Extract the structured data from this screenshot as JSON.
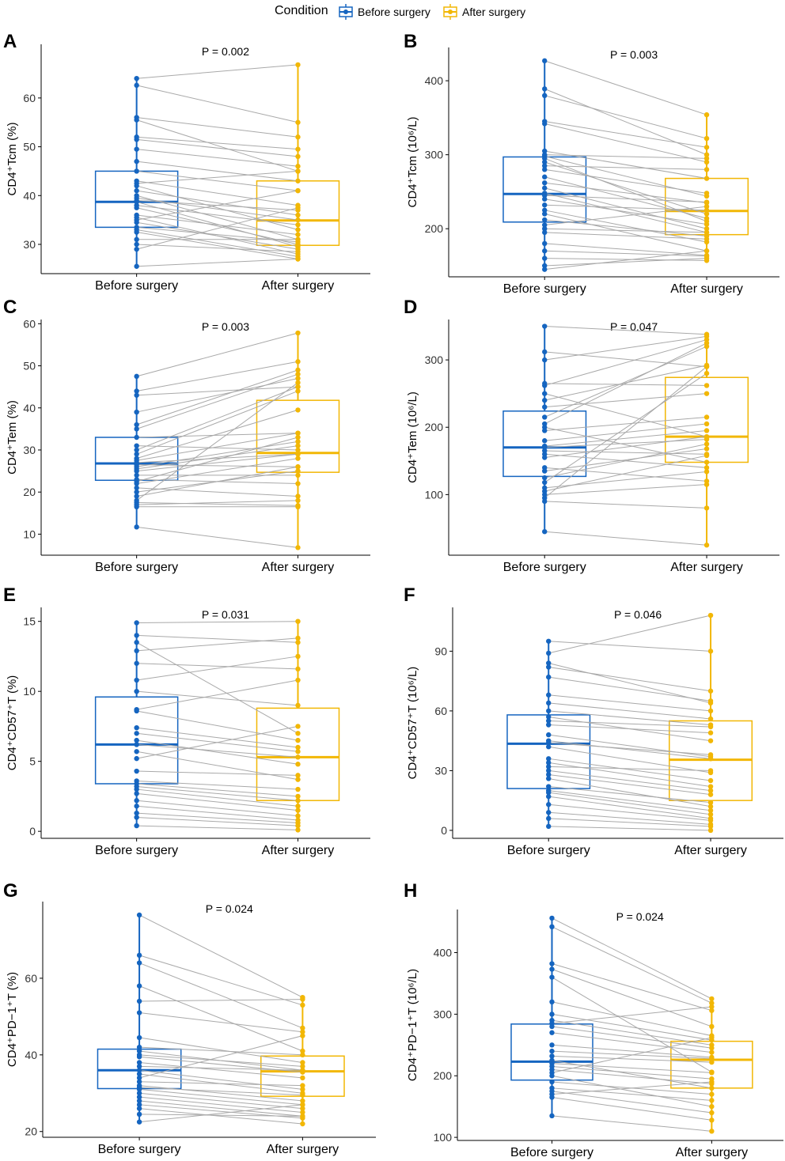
{
  "legend": {
    "title": "Condition",
    "items": [
      {
        "label": "Before surgery",
        "color": "#1565c0"
      },
      {
        "label": "After surgery",
        "color": "#f2b705"
      }
    ]
  },
  "colors": {
    "before": "#1565c0",
    "after": "#f2b705",
    "pair_line": "#a9a9a9",
    "axis": "#000000"
  },
  "chart_data": [
    {
      "type": "boxplot_paired",
      "panel_label": "A",
      "ylabel": "CD4⁺Tcm (%)",
      "p_text": "P = 0.002",
      "categories": [
        "Before surgery",
        "After surgery"
      ],
      "ylim": [
        24,
        71
      ],
      "yticks": [
        30,
        40,
        50,
        60
      ],
      "box": {
        "before": {
          "q1": 33.5,
          "median": 38.7,
          "q3": 45
        },
        "after": {
          "q1": 29.8,
          "median": 34.9,
          "q3": 43
        }
      },
      "pairs": [
        [
          64,
          66.8
        ],
        [
          62.6,
          55
        ],
        [
          56,
          52
        ],
        [
          55.5,
          45
        ],
        [
          52,
          49.5
        ],
        [
          51.5,
          48
        ],
        [
          49.5,
          46
        ],
        [
          47,
          43
        ],
        [
          45,
          41
        ],
        [
          43,
          38
        ],
        [
          42.5,
          45
        ],
        [
          42,
          33
        ],
        [
          41,
          36
        ],
        [
          40,
          31
        ],
        [
          39.5,
          35
        ],
        [
          39,
          37
        ],
        [
          38.7,
          29.5
        ],
        [
          38,
          34
        ],
        [
          37.5,
          30
        ],
        [
          36,
          32
        ],
        [
          35.5,
          28
        ],
        [
          35,
          41
        ],
        [
          34.5,
          29
        ],
        [
          33.5,
          30.5
        ],
        [
          33,
          27.5
        ],
        [
          32.5,
          27
        ],
        [
          31,
          31
        ],
        [
          30,
          28.5
        ],
        [
          29,
          37.5
        ],
        [
          25.5,
          27
        ]
      ]
    },
    {
      "type": "boxplot_paired",
      "panel_label": "B",
      "ylabel": "CD4⁺Tcm (10⁶/L)",
      "p_text": "P = 0.003",
      "categories": [
        "Before surgery",
        "After surgery"
      ],
      "ylim": [
        135,
        445
      ],
      "yticks": [
        200,
        300,
        400
      ],
      "box": {
        "before": {
          "q1": 209,
          "median": 247,
          "q3": 297
        },
        "after": {
          "q1": 192,
          "median": 224,
          "q3": 268
        }
      },
      "pairs": [
        [
          427,
          354
        ],
        [
          389,
          300
        ],
        [
          380,
          322
        ],
        [
          345,
          310
        ],
        [
          342,
          290
        ],
        [
          305,
          268
        ],
        [
          300,
          295
        ],
        [
          298,
          244
        ],
        [
          295,
          210
        ],
        [
          290,
          220
        ],
        [
          285,
          280
        ],
        [
          280,
          248
        ],
        [
          270,
          214
        ],
        [
          262,
          235
        ],
        [
          255,
          200
        ],
        [
          248,
          195
        ],
        [
          245,
          236
        ],
        [
          240,
          206
        ],
        [
          232,
          225
        ],
        [
          225,
          182
        ],
        [
          220,
          170
        ],
        [
          212,
          190
        ],
        [
          205,
          230
        ],
        [
          200,
          195
        ],
        [
          195,
          186
        ],
        [
          180,
          164
        ],
        [
          170,
          163
        ],
        [
          160,
          157
        ],
        [
          150,
          160
        ],
        [
          145,
          170
        ]
      ]
    },
    {
      "type": "boxplot_paired",
      "panel_label": "C",
      "ylabel": "CD4⁺Tem (%)",
      "p_text": "P = 0.003",
      "categories": [
        "Before surgery",
        "After surgery"
      ],
      "ylim": [
        5,
        61
      ],
      "yticks": [
        10,
        20,
        30,
        40,
        50,
        60
      ],
      "box": {
        "before": {
          "q1": 22.8,
          "median": 26.8,
          "q3": 33
        },
        "after": {
          "q1": 24.7,
          "median": 29.3,
          "q3": 41.8
        }
      },
      "pairs": [
        [
          47.5,
          57.8
        ],
        [
          44,
          51
        ],
        [
          43,
          45
        ],
        [
          39,
          47
        ],
        [
          36,
          49
        ],
        [
          35,
          48
        ],
        [
          33,
          34
        ],
        [
          31,
          30
        ],
        [
          30,
          45
        ],
        [
          29,
          44
        ],
        [
          28,
          39.5
        ],
        [
          27.5,
          34
        ],
        [
          27,
          29
        ],
        [
          26.5,
          26
        ],
        [
          26,
          32
        ],
        [
          25.5,
          31
        ],
        [
          25,
          29
        ],
        [
          24,
          24
        ],
        [
          23,
          22
        ],
        [
          22.5,
          33
        ],
        [
          22,
          28
        ],
        [
          21,
          19
        ],
        [
          20,
          25
        ],
        [
          19,
          26
        ],
        [
          18,
          46
        ],
        [
          17.5,
          16.8
        ],
        [
          17,
          18
        ],
        [
          16.5,
          16.5
        ],
        [
          11.7,
          6.8
        ]
      ]
    },
    {
      "type": "boxplot_paired",
      "panel_label": "D",
      "ylabel": "CD4⁺Tem (10⁶/L)",
      "p_text": "P = 0.047",
      "categories": [
        "Before surgery",
        "After surgery"
      ],
      "ylim": [
        10,
        360
      ],
      "yticks": [
        100,
        200,
        300
      ],
      "box": {
        "before": {
          "q1": 127,
          "median": 170,
          "q3": 224
        },
        "after": {
          "q1": 148,
          "median": 186,
          "q3": 274
        }
      },
      "pairs": [
        [
          350,
          338
        ],
        [
          312,
          290
        ],
        [
          300,
          335
        ],
        [
          265,
          262
        ],
        [
          262,
          330
        ],
        [
          250,
          186
        ],
        [
          240,
          292
        ],
        [
          230,
          250
        ],
        [
          215,
          320
        ],
        [
          205,
          325
        ],
        [
          200,
          148
        ],
        [
          195,
          215
        ],
        [
          180,
          205
        ],
        [
          172,
          195
        ],
        [
          170,
          182
        ],
        [
          165,
          160
        ],
        [
          160,
          140
        ],
        [
          155,
          186
        ],
        [
          140,
          120
        ],
        [
          135,
          168
        ],
        [
          125,
          175
        ],
        [
          118,
          280
        ],
        [
          110,
          134
        ],
        [
          105,
          158
        ],
        [
          100,
          115
        ],
        [
          95,
          290
        ],
        [
          90,
          80
        ],
        [
          45,
          25
        ]
      ]
    },
    {
      "type": "boxplot_paired",
      "panel_label": "E",
      "ylabel": "CD4⁺CD57⁺T (%)",
      "p_text": "P = 0.031",
      "categories": [
        "Before surgery",
        "After surgery"
      ],
      "ylim": [
        -0.5,
        16
      ],
      "yticks": [
        0,
        5,
        10,
        15
      ],
      "box": {
        "before": {
          "q1": 3.4,
          "median": 6.2,
          "q3": 9.6
        },
        "after": {
          "q1": 2.2,
          "median": 5.3,
          "q3": 8.8
        }
      },
      "pairs": [
        [
          14.9,
          15
        ],
        [
          14,
          13.5
        ],
        [
          13.5,
          7
        ],
        [
          12.9,
          13.8
        ],
        [
          12,
          11.6
        ],
        [
          10.8,
          12.5
        ],
        [
          10,
          9
        ],
        [
          8.7,
          10.8
        ],
        [
          8.6,
          6.5
        ],
        [
          7.4,
          6
        ],
        [
          7,
          5.7
        ],
        [
          6.5,
          4.8
        ],
        [
          6.2,
          5.3
        ],
        [
          5.7,
          3.7
        ],
        [
          5.2,
          7.5
        ],
        [
          4.3,
          4
        ],
        [
          3.6,
          3
        ],
        [
          3.4,
          2.5
        ],
        [
          3.2,
          2.2
        ],
        [
          3,
          1.8
        ],
        [
          2.7,
          1.5
        ],
        [
          2.2,
          1.1
        ],
        [
          1.8,
          0.8
        ],
        [
          1.3,
          0.6
        ],
        [
          1,
          0.4
        ],
        [
          0.4,
          0.1
        ]
      ]
    },
    {
      "type": "boxplot_paired",
      "panel_label": "F",
      "ylabel": "CD4⁺CD57⁺T (10⁶/L)",
      "p_text": "P = 0.046",
      "categories": [
        "Before surgery",
        "After surgery"
      ],
      "ylim": [
        -4,
        112
      ],
      "yticks": [
        0,
        30,
        60,
        90
      ],
      "box": {
        "before": {
          "q1": 21,
          "median": 43.5,
          "q3": 58
        },
        "after": {
          "q1": 15,
          "median": 35.5,
          "q3": 55
        }
      },
      "pairs": [
        [
          95,
          90
        ],
        [
          89,
          108
        ],
        [
          84,
          64
        ],
        [
          82,
          70
        ],
        [
          77,
          65
        ],
        [
          68,
          60
        ],
        [
          64,
          56
        ],
        [
          60,
          53
        ],
        [
          57,
          45
        ],
        [
          55,
          52
        ],
        [
          53,
          49
        ],
        [
          48,
          37
        ],
        [
          45,
          36
        ],
        [
          44,
          38
        ],
        [
          42,
          29
        ],
        [
          36,
          25
        ],
        [
          34,
          22
        ],
        [
          32,
          30
        ],
        [
          30,
          20
        ],
        [
          28,
          18
        ],
        [
          26,
          12
        ],
        [
          22,
          14
        ],
        [
          20,
          10
        ],
        [
          19,
          8
        ],
        [
          17,
          6
        ],
        [
          13,
          5
        ],
        [
          9,
          3
        ],
        [
          6,
          2
        ],
        [
          2,
          0
        ]
      ]
    },
    {
      "type": "boxplot_paired",
      "panel_label": "G",
      "ylabel": "CD4⁺PD−1⁺T (%)",
      "p_text": "P = 0.024",
      "categories": [
        "Before surgery",
        "After surgery"
      ],
      "ylim": [
        18.5,
        80
      ],
      "yticks": [
        20,
        40,
        60
      ],
      "box": {
        "before": {
          "q1": 31.2,
          "median": 36,
          "q3": 41.5
        },
        "after": {
          "q1": 29.2,
          "median": 35.7,
          "q3": 39.7
        }
      },
      "pairs": [
        [
          76.5,
          55
        ],
        [
          66,
          53
        ],
        [
          64,
          47
        ],
        [
          58,
          41
        ],
        [
          54,
          54.5
        ],
        [
          51,
          46
        ],
        [
          44.5,
          38
        ],
        [
          42,
          40
        ],
        [
          41,
          36
        ],
        [
          40,
          37
        ],
        [
          39.5,
          35.5
        ],
        [
          38,
          34
        ],
        [
          37,
          36
        ],
        [
          36,
          31
        ],
        [
          35,
          30
        ],
        [
          34,
          45
        ],
        [
          33,
          32
        ],
        [
          32,
          28
        ],
        [
          31.5,
          29.5
        ],
        [
          31,
          27
        ],
        [
          30,
          26
        ],
        [
          29,
          25
        ],
        [
          28,
          24
        ],
        [
          27,
          23.5
        ],
        [
          26,
          22
        ],
        [
          24.5,
          24
        ],
        [
          22.5,
          27
        ]
      ]
    },
    {
      "type": "boxplot_paired",
      "panel_label": "H",
      "ylabel": "CD4⁺PD−1⁺T (10⁶/L)",
      "p_text": "P = 0.024",
      "categories": [
        "Before surgery",
        "After surgery"
      ],
      "ylim": [
        95,
        470
      ],
      "yticks": [
        100,
        200,
        300,
        400
      ],
      "box": {
        "before": {
          "q1": 193,
          "median": 223,
          "q3": 284
        },
        "after": {
          "q1": 180,
          "median": 226,
          "q3": 256
        }
      },
      "pairs": [
        [
          456,
          325
        ],
        [
          442,
          318
        ],
        [
          382,
          306
        ],
        [
          373,
          280
        ],
        [
          360,
          206
        ],
        [
          320,
          265
        ],
        [
          300,
          258
        ],
        [
          290,
          250
        ],
        [
          285,
          312
        ],
        [
          280,
          245
        ],
        [
          270,
          238
        ],
        [
          250,
          230
        ],
        [
          240,
          228
        ],
        [
          232,
          222
        ],
        [
          225,
          180
        ],
        [
          220,
          205
        ],
        [
          215,
          195
        ],
        [
          210,
          187
        ],
        [
          205,
          262
        ],
        [
          200,
          150
        ],
        [
          190,
          170
        ],
        [
          180,
          160
        ],
        [
          175,
          140
        ],
        [
          170,
          190
        ],
        [
          165,
          128
        ],
        [
          135,
          110
        ]
      ]
    }
  ]
}
